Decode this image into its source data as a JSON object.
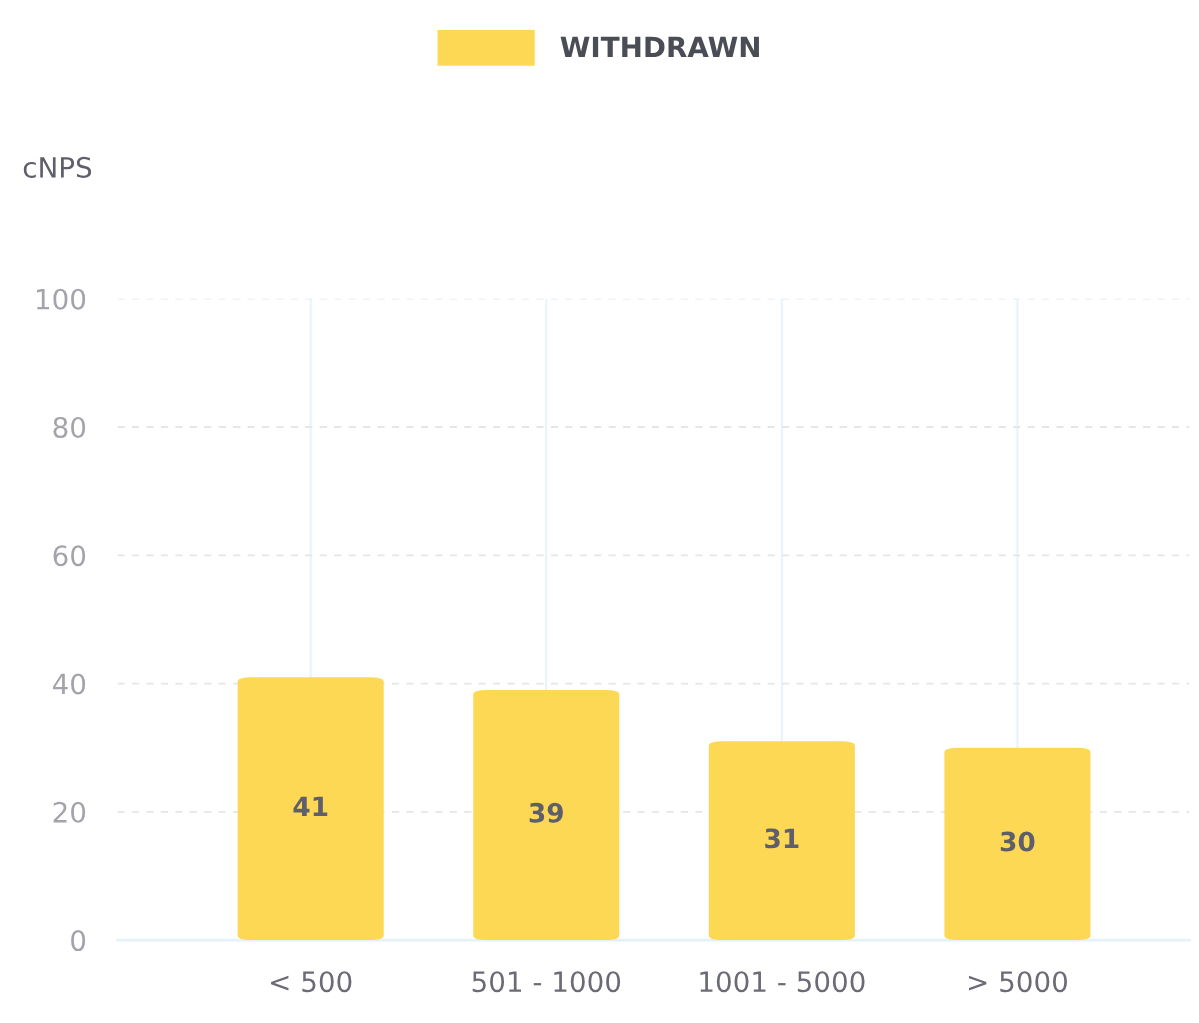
{
  "chart_data": {
    "type": "bar",
    "ylabel": "cNPS",
    "categories": [
      "< 500",
      "501 - 1000",
      "1001 - 5000",
      "> 5000"
    ],
    "series": [
      {
        "name": "WITHDRAWN",
        "color": "#fdd855",
        "values": [
          41,
          39,
          31,
          30
        ]
      }
    ],
    "ylim": [
      0,
      100
    ],
    "yticks": [
      0,
      20,
      40,
      60,
      80,
      100
    ],
    "grid": true,
    "legend": "top",
    "data_labels": true
  }
}
